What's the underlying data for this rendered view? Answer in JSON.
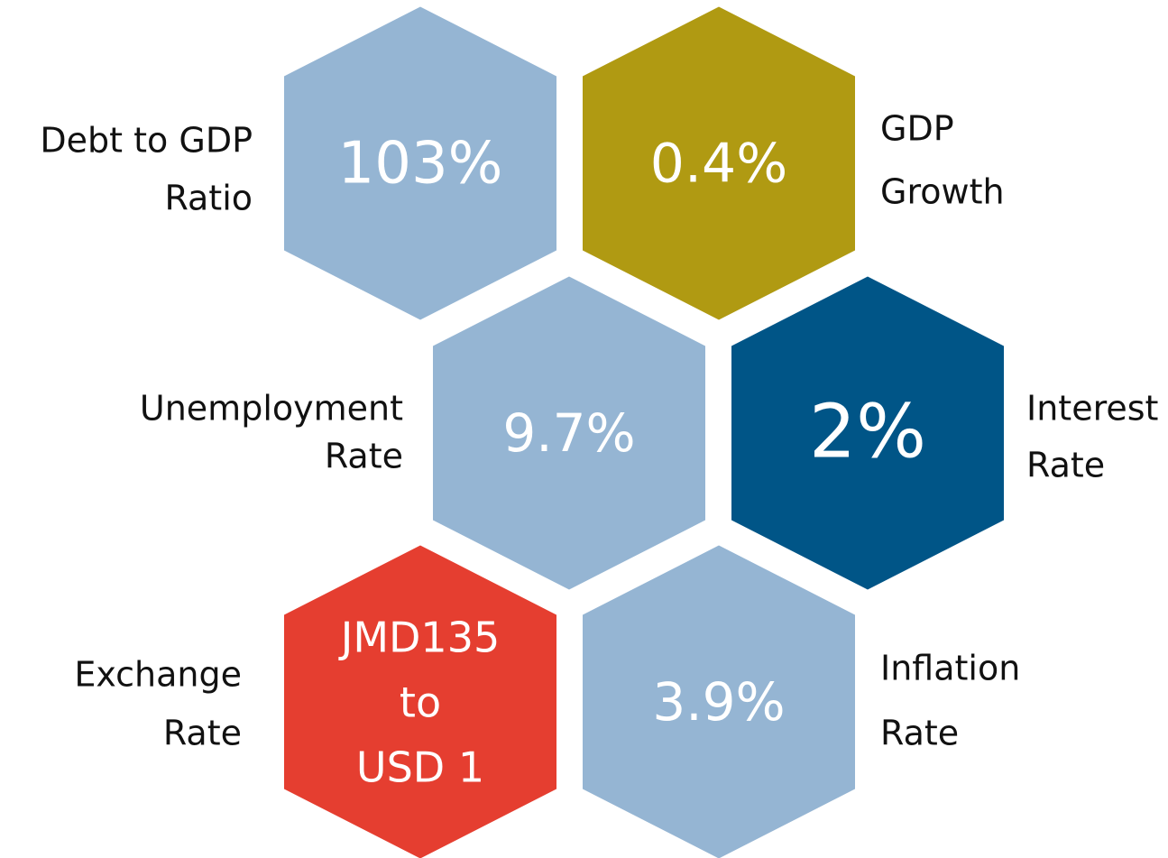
{
  "hexagons": [
    {
      "value": [
        "103%"
      ],
      "label": [
        "Debt to GDP",
        "Ratio"
      ],
      "color": "#95b5d3"
    },
    {
      "value": [
        "0.4%"
      ],
      "label": [
        "GDP",
        "Growth"
      ],
      "color": "#b09a12"
    },
    {
      "value": [
        "9.7%"
      ],
      "label": [
        "Unemployment",
        "Rate"
      ],
      "color": "#95b5d3"
    },
    {
      "value": [
        "2%"
      ],
      "label": [
        "Interest",
        "Rate"
      ],
      "color": "#005587"
    },
    {
      "value": [
        "JMD135",
        "to",
        "USD 1"
      ],
      "label": [
        "Exchange",
        "Rate"
      ],
      "color": "#e53e30"
    },
    {
      "value": [
        "3.9%"
      ],
      "label": [
        "Inflation",
        "Rate"
      ],
      "color": "#95b5d3"
    }
  ]
}
